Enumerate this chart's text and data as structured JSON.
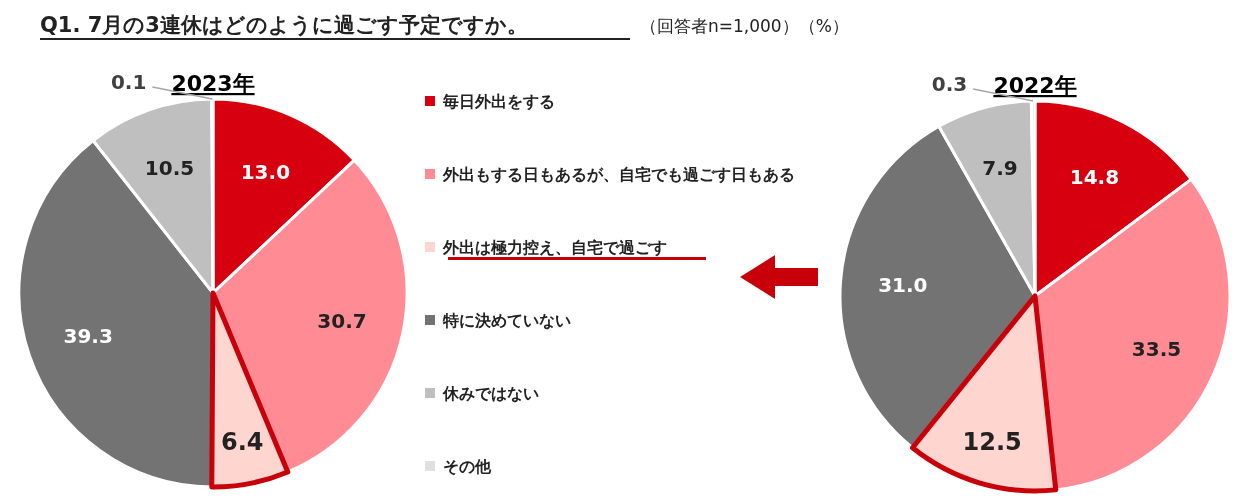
{
  "chart_data": [
    {
      "type": "pie",
      "title": "2023年",
      "categories": [
        "毎日外出をする",
        "外出もする日もあるが、自宅でも過ごす日もある",
        "外出は極力控え、自宅で過ごす",
        "特に決めていない",
        "休みではない",
        "その他"
      ],
      "values": [
        13.0,
        30.7,
        6.4,
        39.3,
        10.5,
        0.1
      ],
      "value_labels": [
        "13.0",
        "30.7",
        "6.4",
        "39.3",
        "10.5",
        "0.1"
      ],
      "colors": [
        "#d7000f",
        "#ff8c94",
        "#ffd5d0",
        "#737373",
        "#bfbfbf",
        "#e0e0e0"
      ],
      "legend": "right",
      "annotations": [
        "Q1. 7月の3連休はどのように過ごす予定ですか。",
        "（回答者n=1,000）（%）"
      ]
    },
    {
      "type": "pie",
      "title": "2022年",
      "categories": [
        null,
        null,
        null,
        null,
        null,
        null
      ],
      "values": [
        14.8,
        33.5,
        12.5,
        31.0,
        7.9,
        0.3
      ],
      "value_labels": [
        "14.8",
        "33.5",
        "12.5",
        "31.0",
        "7.9",
        "0.3"
      ],
      "colors": [
        "#d7000f",
        "#ff8c94",
        "#ffd5d0",
        "#737373",
        "#bfbfbf",
        "#e0e0e0"
      ]
    }
  ]
}
